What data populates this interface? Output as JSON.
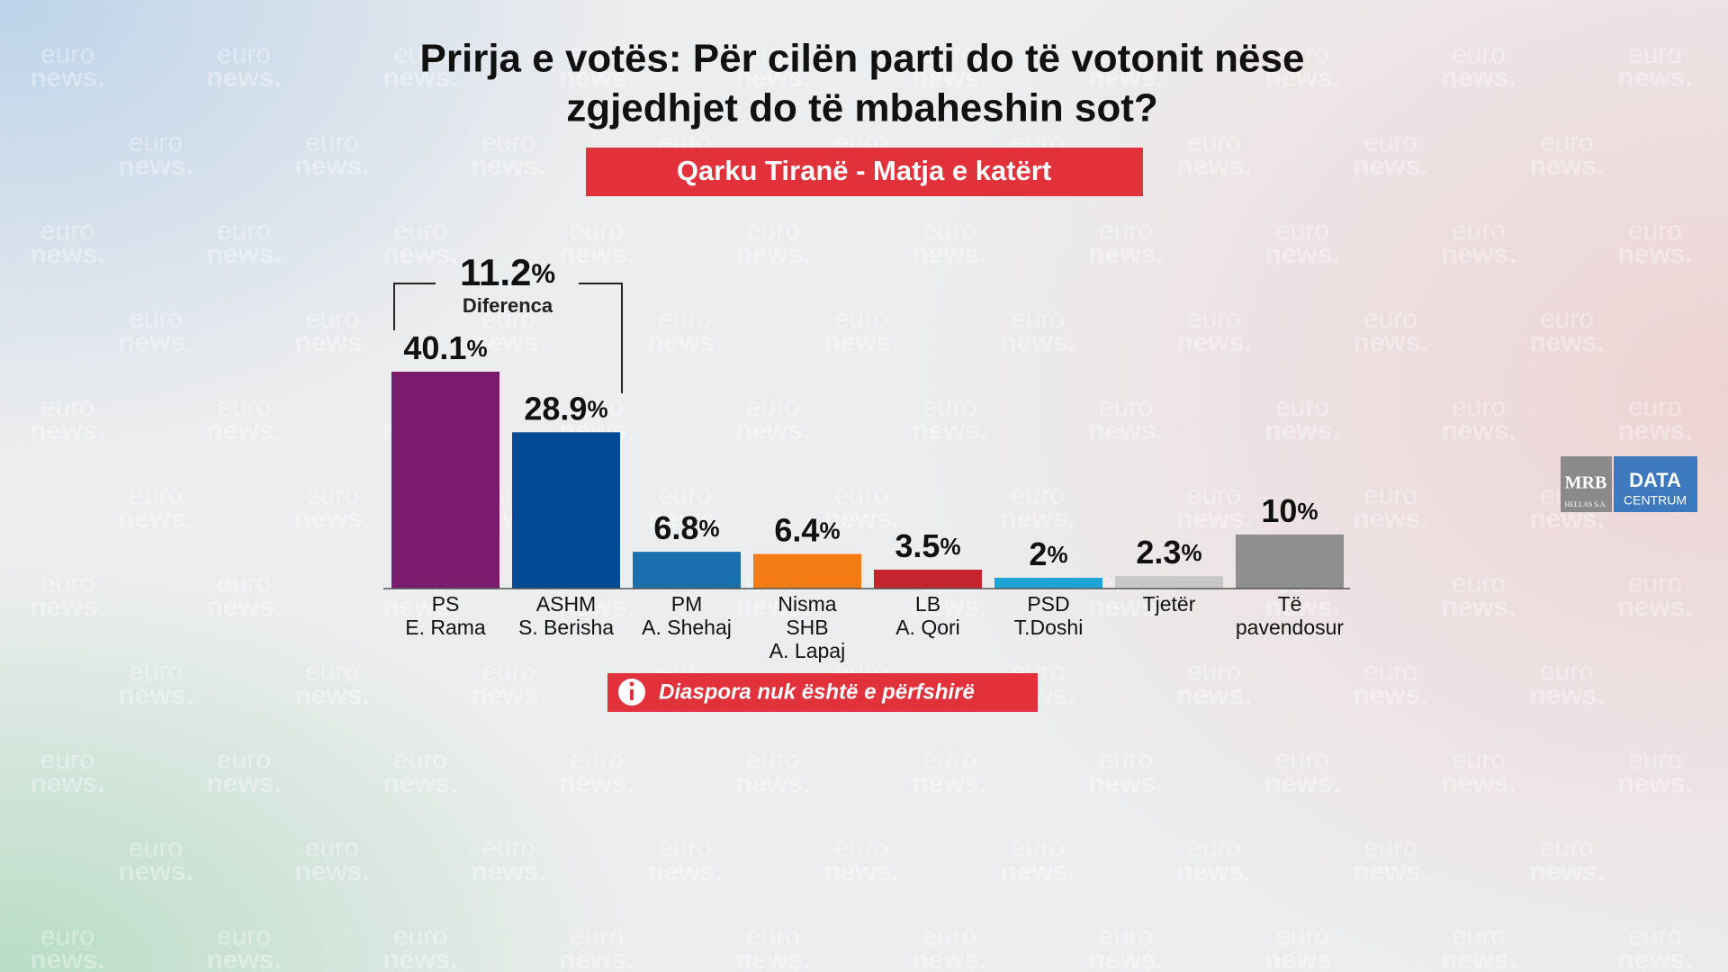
{
  "chart_data": {
    "type": "bar",
    "title": [
      "Prirja e votës: Për cilën parti do të votonit nëse",
      "zgjedhjet do të mbaheshin sot?"
    ],
    "subtitle": "Qarku Tiranë - Matja e katërt",
    "categories": [
      [
        "PS",
        "E. Rama"
      ],
      [
        "ASHM",
        "S. Berisha"
      ],
      [
        "PM",
        "A. Shehaj"
      ],
      [
        "Nisma",
        "SHB",
        "A. Lapaj"
      ],
      [
        "LB",
        "A. Qori"
      ],
      [
        "PSD",
        "T.Doshi"
      ],
      [
        "Tjetër"
      ],
      [
        "Të",
        "pavendosur"
      ]
    ],
    "values": [
      40.1,
      28.9,
      6.8,
      6.4,
      3.5,
      2,
      2.3,
      10
    ],
    "value_labels": [
      "40.1%",
      "28.9%",
      "6.8%",
      "6.4%",
      "3.5%",
      "2%",
      "2.3%",
      "10%"
    ],
    "colors": [
      "#7a1b6e",
      "#004b93",
      "#1a6fae",
      "#f57c12",
      "#c4242b",
      "#1fa3d6",
      "#c8c8c8",
      "#8f8f8f"
    ],
    "difference": {
      "label": "11.2%",
      "caption": "Diferenca"
    },
    "note": "Diaspora nuk është e përfshirë",
    "logo": {
      "left": "MRB",
      "left_sub": "HELLAS S.A.",
      "right": "DATA",
      "right_sub": "CENTRUM"
    },
    "watermark": [
      "euro",
      "news."
    ]
  }
}
